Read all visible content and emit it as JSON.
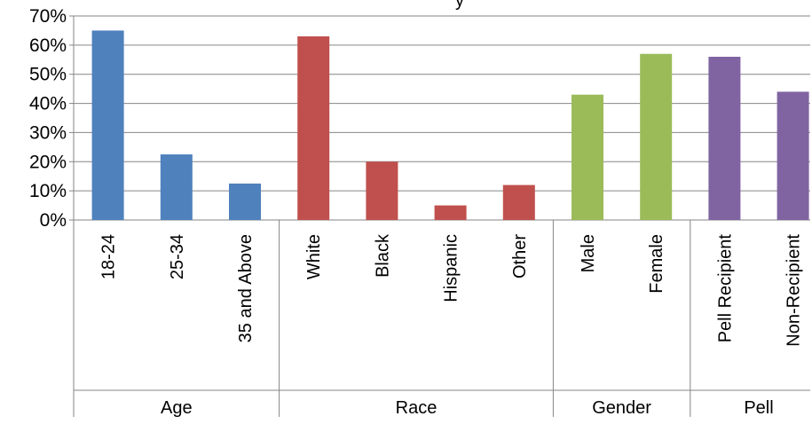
{
  "chart_data": {
    "type": "bar",
    "title": "y",
    "xlabel": "",
    "ylabel": "",
    "ylim": [
      0,
      0.7
    ],
    "y_ticks": [
      "0%",
      "10%",
      "20%",
      "30%",
      "40%",
      "50%",
      "60%",
      "70%"
    ],
    "grid": true,
    "legend": "none",
    "groups": [
      {
        "name": "Age",
        "color": "#4F81BD",
        "categories": [
          "18-24",
          "25-34",
          "35 and Above"
        ],
        "values": [
          0.65,
          0.225,
          0.125
        ]
      },
      {
        "name": "Race",
        "color": "#C0504D",
        "categories": [
          "White",
          "Black",
          "Hispanic",
          "Other"
        ],
        "values": [
          0.63,
          0.2,
          0.05,
          0.12
        ]
      },
      {
        "name": "Gender",
        "color": "#9BBB59",
        "categories": [
          "Male",
          "Female"
        ],
        "values": [
          0.43,
          0.57
        ]
      },
      {
        "name": "Pell",
        "color": "#8064A2",
        "categories": [
          "Pell Recipient",
          "Non-Recipient"
        ],
        "values": [
          0.56,
          0.44
        ]
      }
    ]
  }
}
